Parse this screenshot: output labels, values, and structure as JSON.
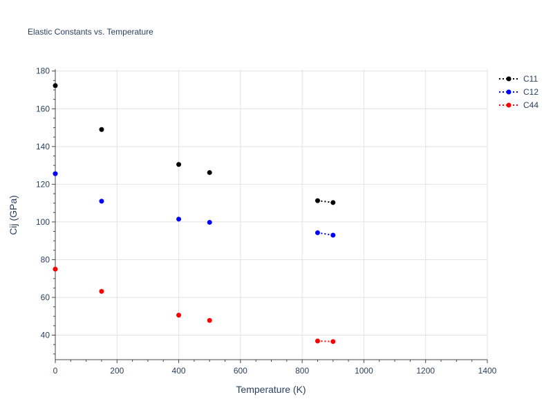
{
  "chart_data": {
    "type": "scatter",
    "title": "Elastic Constants vs. Temperature",
    "xlabel": "Temperature (K)",
    "ylabel": "Cij (GPa)",
    "xlim": [
      0,
      1400
    ],
    "ylim": [
      27,
      181
    ],
    "xticks": [
      0,
      200,
      400,
      600,
      800,
      1000,
      1200,
      1400
    ],
    "yticks": [
      40,
      60,
      80,
      100,
      120,
      140,
      160,
      180
    ],
    "grid": true,
    "legend_position": "top-right",
    "series": [
      {
        "name": "C11",
        "color": "#000000",
        "line_style": "dotted",
        "points": [
          [
            0,
            172.3
          ],
          [
            150,
            149.0
          ],
          [
            400,
            130.5
          ],
          [
            500,
            126.2
          ],
          [
            850,
            111.3
          ],
          [
            900,
            110.3
          ]
        ],
        "connected_segments": [
          [
            850,
            900
          ]
        ]
      },
      {
        "name": "C12",
        "color": "#0000ff",
        "line_style": "dotted",
        "points": [
          [
            0,
            125.6
          ],
          [
            150,
            111.0
          ],
          [
            400,
            101.5
          ],
          [
            500,
            99.8
          ],
          [
            850,
            94.3
          ],
          [
            900,
            93.0
          ]
        ],
        "connected_segments": [
          [
            850,
            900
          ]
        ]
      },
      {
        "name": "C44",
        "color": "#ff0000",
        "line_style": "dotted",
        "points": [
          [
            0,
            75.0
          ],
          [
            150,
            63.2
          ],
          [
            400,
            50.6
          ],
          [
            500,
            47.8
          ],
          [
            850,
            36.9
          ],
          [
            900,
            36.6
          ]
        ],
        "connected_segments": [
          [
            850,
            900
          ]
        ]
      }
    ]
  }
}
